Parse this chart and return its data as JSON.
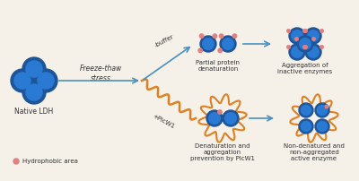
{
  "bg_color": "#f5f0e8",
  "blue_outer": "#1e5598",
  "blue_inner": "#2a7ad4",
  "orange_wavy": "#e08020",
  "pink_hydrophobic": "#e08080",
  "arrow_color": "#4a90c0",
  "text_color": "#333333",
  "title": "Native LDH",
  "label_partial": "Partial protein\ndenaturation",
  "label_aggregation": "Aggregation of\ninactive enzymes",
  "label_prevention": "Denaturation and\naggregation\nprevention by PicW1",
  "label_nondenatured": "Non-denatured and\nnon-aggregated\nactive enzyme",
  "label_freeze": "Freeze-thaw\nstress",
  "label_buffer": "-buffer",
  "label_picw1": "+PicW1",
  "label_hydrophobic": "Hydrophobic area"
}
